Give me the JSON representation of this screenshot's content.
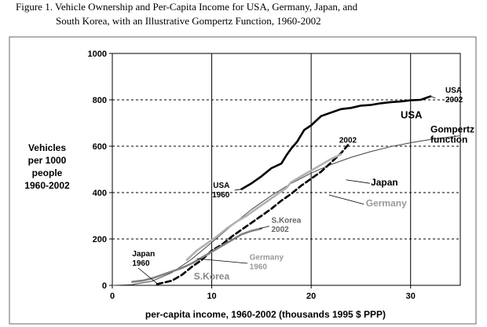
{
  "chart_data": {
    "type": "line",
    "title_line1": "Figure 1.  Vehicle Ownership and Per-Capita Income for USA, Germany, Japan, and",
    "title_line2": "South Korea, with an Illustrative Gompertz Function, 1960-2002",
    "xlabel": "per-capita income, 1960-2002 (thousands 1995 $ PPP)",
    "ylabel_lines": [
      "Vehicles",
      "per 1000",
      "people",
      "1960-2002"
    ],
    "xlim": [
      0,
      35
    ],
    "ylim": [
      0,
      1000
    ],
    "xticks": [
      0,
      10,
      20,
      30
    ],
    "yticks": [
      0,
      200,
      400,
      600,
      800,
      1000
    ],
    "grid": "dashed horizontal at y ticks, solid vertical at x = 10, 20, 30",
    "colors": {
      "usa": "#000000",
      "gompertz": "#555555",
      "japan": "#000000",
      "germany": "#b0b0b0",
      "korea": "#808080"
    },
    "series": [
      {
        "name": "USA",
        "style": "solid thick",
        "x": [
          13.0,
          14,
          15,
          16,
          17,
          17.5,
          18,
          18.6,
          19.3,
          20,
          21,
          22,
          23,
          24,
          25,
          26,
          27,
          28,
          29,
          30,
          31,
          32
        ],
        "y": [
          415,
          440,
          470,
          505,
          525,
          560,
          590,
          620,
          670,
          690,
          730,
          745,
          760,
          765,
          775,
          778,
          785,
          790,
          793,
          798,
          800,
          815
        ]
      },
      {
        "name": "Gompertz function",
        "style": "thin",
        "x": [
          0,
          2,
          4,
          6,
          8,
          10,
          12,
          14,
          16,
          18,
          20,
          22,
          24,
          26,
          28,
          30,
          32,
          35
        ],
        "y": [
          0,
          3,
          18,
          55,
          114,
          185,
          258,
          327,
          387,
          440,
          484,
          521,
          552,
          577,
          598,
          615,
          629,
          645
        ]
      },
      {
        "name": "Japan",
        "style": "dashed thick",
        "x": [
          4.5,
          6,
          7,
          8,
          9,
          10,
          11,
          12,
          13,
          14,
          15,
          16,
          17,
          18,
          19,
          20,
          21,
          22,
          23,
          23.7
        ],
        "y": [
          5,
          20,
          45,
          80,
          110,
          150,
          175,
          210,
          240,
          270,
          300,
          330,
          365,
          395,
          430,
          460,
          490,
          530,
          570,
          605
        ]
      },
      {
        "name": "Germany",
        "style": "solid thick",
        "x": [
          7.5,
          8.5,
          9.5,
          10.5,
          11.5,
          12.5,
          13.5,
          14.5,
          15.5,
          16.5,
          17.5,
          18,
          19,
          20,
          21,
          22,
          23
        ],
        "y": [
          110,
          150,
          180,
          210,
          245,
          275,
          300,
          330,
          360,
          390,
          420,
          445,
          470,
          495,
          520,
          545,
          565
        ]
      },
      {
        "name": "S.Korea",
        "style": "solid thick",
        "x": [
          2.0,
          3,
          4,
          5,
          6,
          7,
          8,
          9,
          10,
          11,
          12,
          13,
          14,
          15
        ],
        "y": [
          15,
          20,
          30,
          45,
          60,
          75,
          95,
          120,
          145,
          170,
          195,
          220,
          235,
          245
        ]
      }
    ],
    "annotations": [
      {
        "text": "USA",
        "x": 29.0,
        "y": 720
      },
      {
        "text": "USA",
        "x": 33.5,
        "y": 830
      },
      {
        "text": "2002",
        "x": 33.5,
        "y": 790
      },
      {
        "text": "Gompertz",
        "x": 32.0,
        "y": 660
      },
      {
        "text": "function",
        "x": 32.0,
        "y": 615
      },
      {
        "text": "2002",
        "x": 23.7,
        "y": 615
      },
      {
        "text": "USA",
        "x": 11.8,
        "y": 420
      },
      {
        "text": "1960",
        "x": 11.8,
        "y": 380
      },
      {
        "text": "Japan",
        "x": 26.0,
        "y": 430
      },
      {
        "text": "Germany",
        "x": 25.5,
        "y": 340
      },
      {
        "text": "S.Korea",
        "x": 16.0,
        "y": 270
      },
      {
        "text": "2002",
        "x": 16.0,
        "y": 230
      },
      {
        "text": "Japan",
        "x": 2.0,
        "y": 125
      },
      {
        "text": "1960",
        "x": 2.0,
        "y": 85
      },
      {
        "text": "Germany",
        "x": 13.8,
        "y": 110
      },
      {
        "text": "1960",
        "x": 13.8,
        "y": 70
      },
      {
        "text": "S.Korea",
        "x": 8.2,
        "y": 25
      }
    ]
  }
}
